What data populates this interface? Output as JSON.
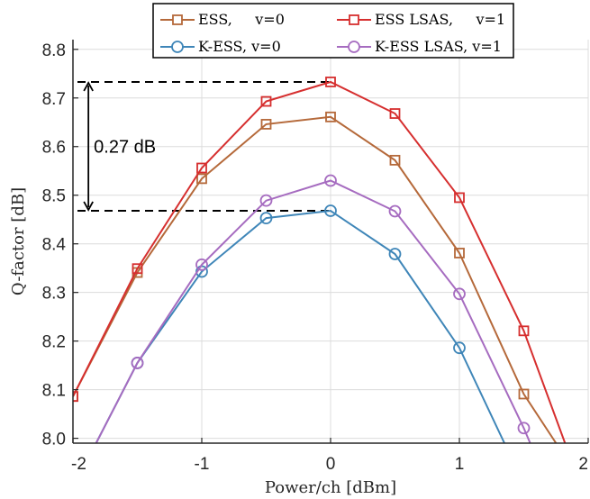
{
  "chart_data": {
    "type": "line",
    "xlabel": "Power/ch [dBm]",
    "ylabel": "Q-factor [dB]",
    "xlim": [
      -2,
      2
    ],
    "ylim": [
      7.99,
      8.82
    ],
    "xticks": [
      -2,
      -1,
      0,
      1,
      2
    ],
    "xtick_labels": [
      "-2",
      "-1",
      "0",
      "1",
      "2"
    ],
    "yticks": [
      8.0,
      8.1,
      8.2,
      8.3,
      8.4,
      8.5,
      8.6,
      8.7,
      8.8
    ],
    "ytick_labels": [
      "8.0",
      "8.1",
      "8.2",
      "8.3",
      "8.4",
      "8.5",
      "8.6",
      "8.7",
      "8.8"
    ],
    "grid": true,
    "legend_position": "top",
    "series": [
      {
        "name": "ESS,     v=0",
        "color": "#b5693a",
        "marker": "square",
        "x": [
          -2,
          -1.5,
          -1,
          -0.5,
          0,
          0.5,
          1,
          1.5,
          1.75
        ],
        "y": [
          8.086,
          8.341,
          8.534,
          8.646,
          8.661,
          8.572,
          8.381,
          8.091,
          7.99
        ]
      },
      {
        "name": "ESS LSAS,     v=1",
        "color": "#d62f2f",
        "marker": "square",
        "x": [
          -2,
          -1.5,
          -1,
          -0.5,
          0,
          0.5,
          1,
          1.5,
          1.82
        ],
        "y": [
          8.086,
          8.349,
          8.556,
          8.693,
          8.733,
          8.668,
          8.495,
          8.221,
          7.99
        ]
      },
      {
        "name": "K-ESS, v=0",
        "color": "#3f86b8",
        "marker": "circle",
        "x": [
          -1.82,
          -1.5,
          -1,
          -0.5,
          0,
          0.5,
          1,
          1.35
        ],
        "y": [
          7.99,
          8.155,
          8.343,
          8.453,
          8.468,
          8.379,
          8.186,
          7.99
        ]
      },
      {
        "name": "K-ESS LSAS, v=1",
        "color": "#a66cc0",
        "marker": "circle",
        "x": [
          -1.82,
          -1.5,
          -1,
          -0.5,
          0,
          0.5,
          1,
          1.5,
          1.55
        ],
        "y": [
          7.99,
          8.155,
          8.357,
          8.489,
          8.53,
          8.467,
          8.297,
          8.021,
          7.99
        ]
      }
    ],
    "annotations": [
      {
        "text": "0.27 dB",
        "y_top": 8.733,
        "y_bottom": 8.468,
        "x_arrow": -1.88
      }
    ]
  }
}
